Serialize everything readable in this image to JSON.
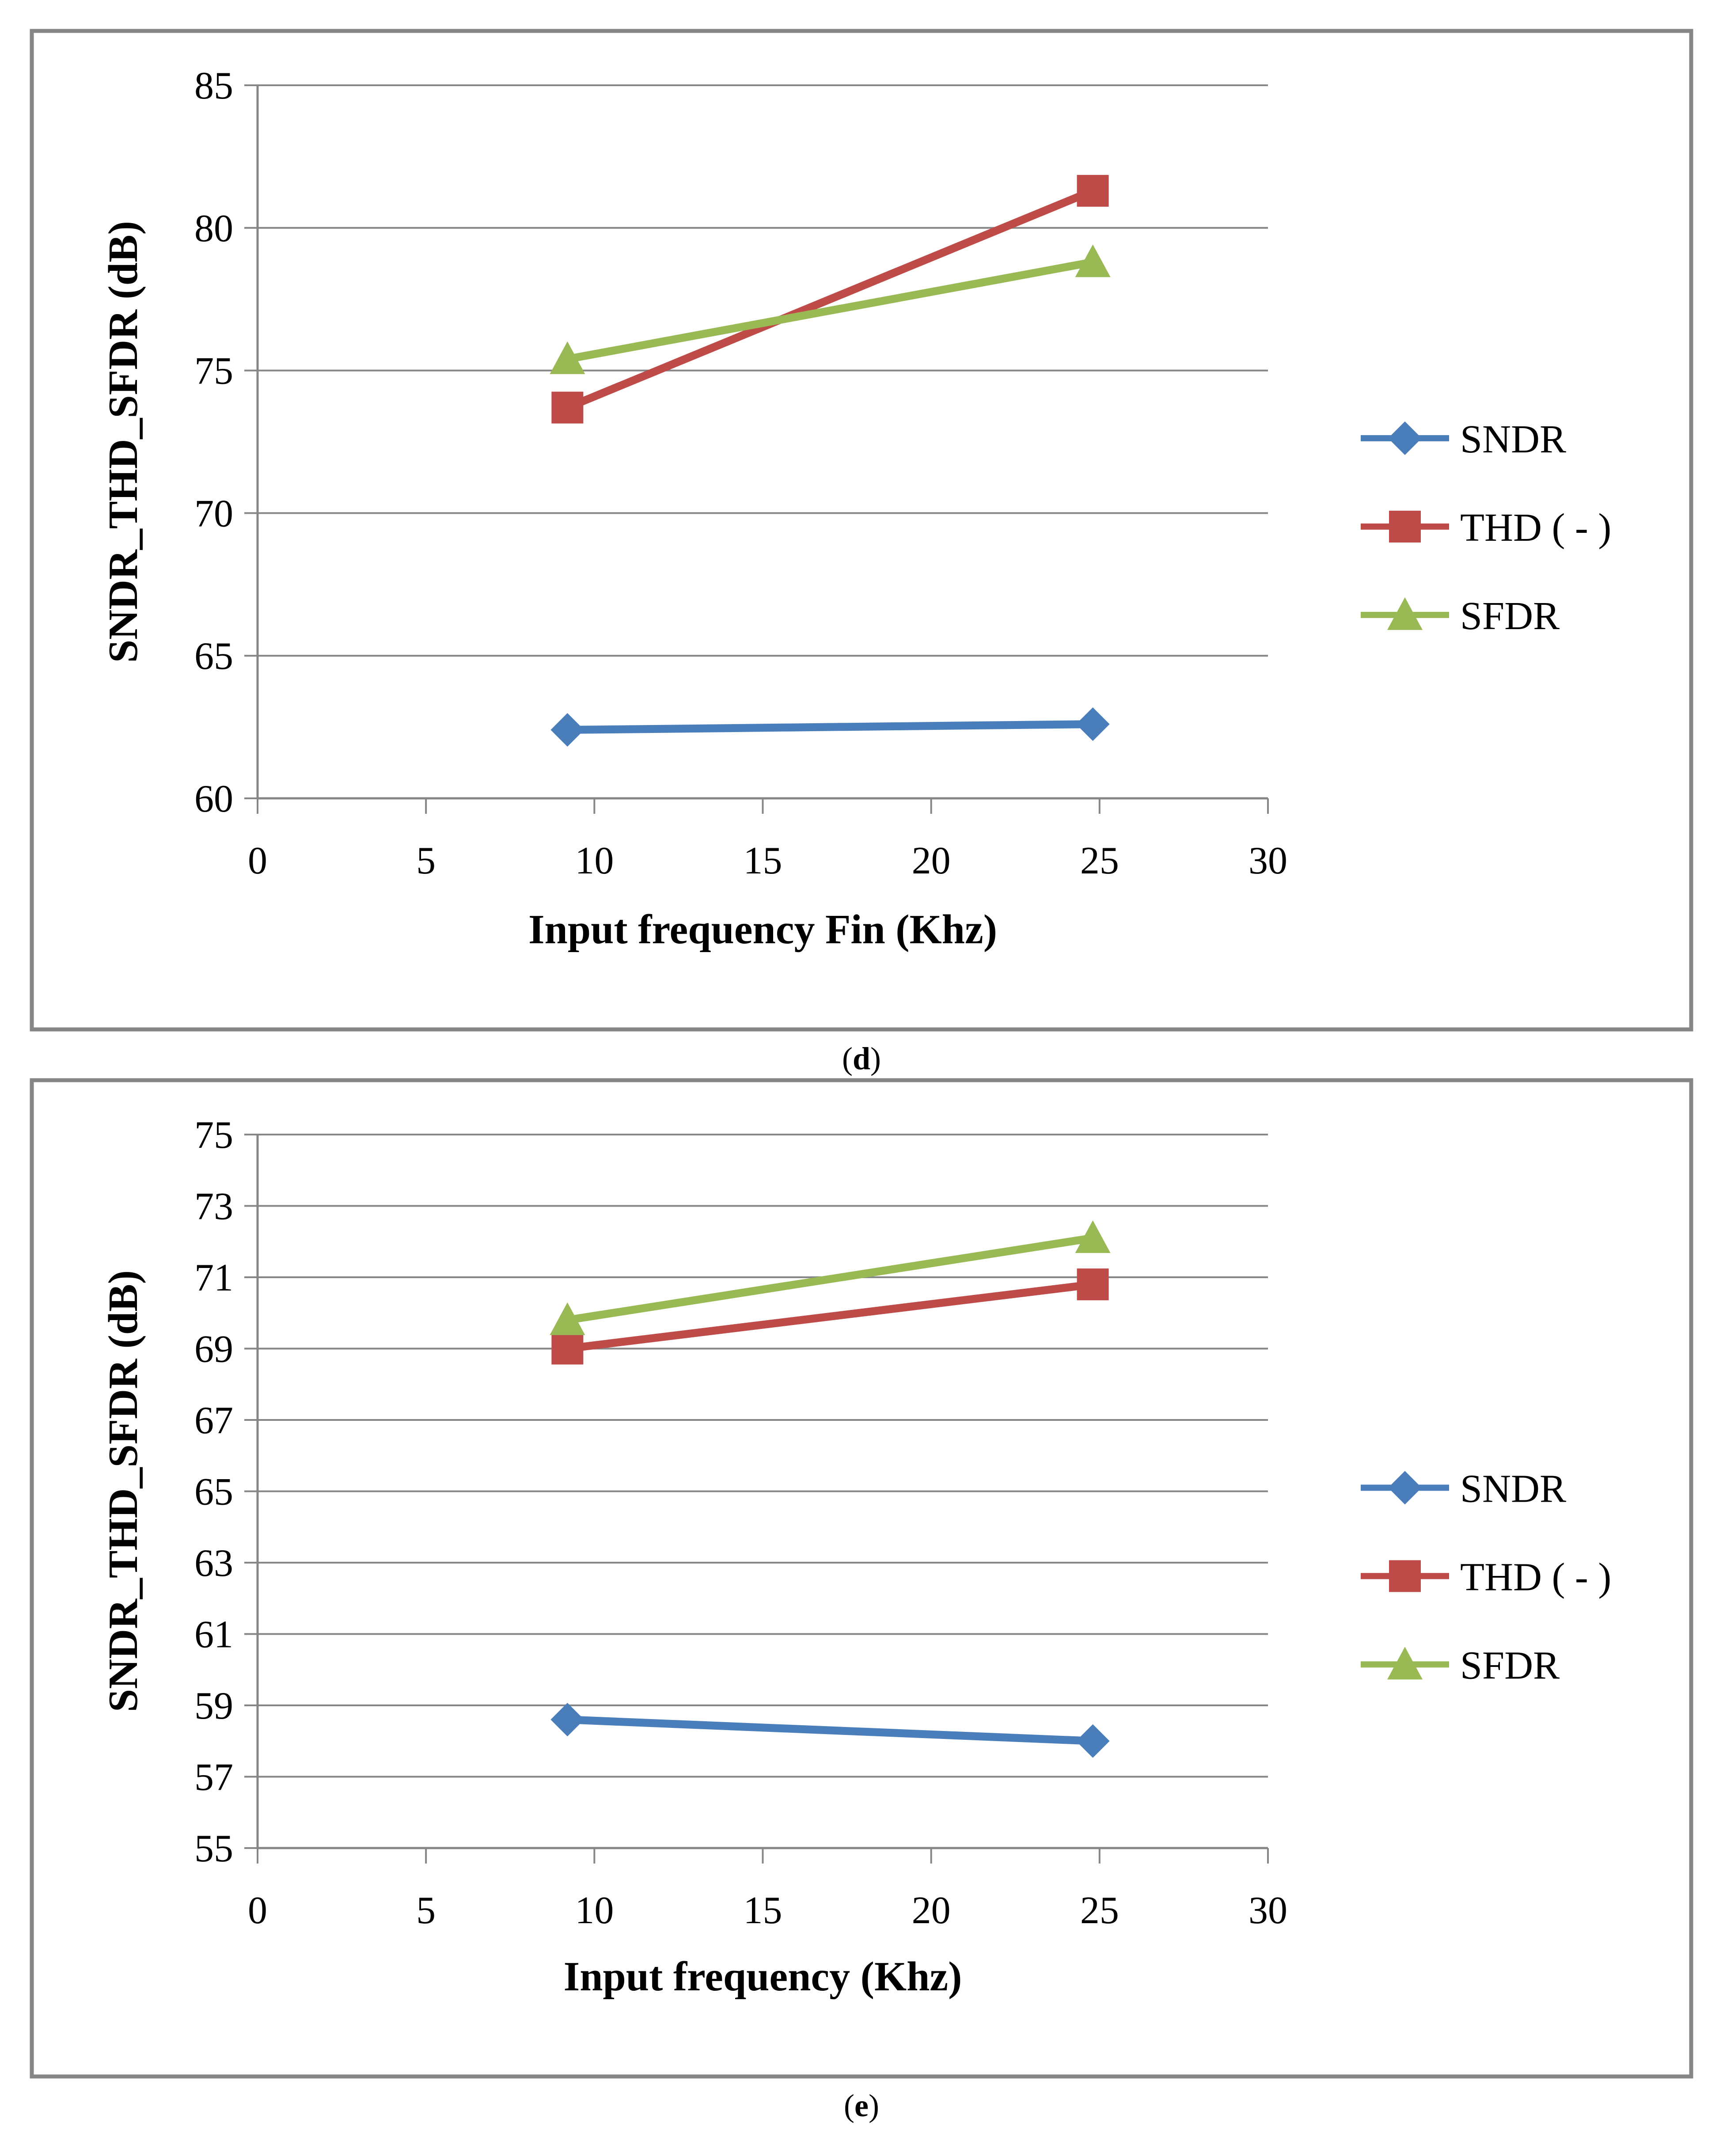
{
  "chart_data": [
    {
      "type": "line",
      "panel": "d",
      "xlabel": "Input  frequency Fin (Khz)",
      "ylabel": "SNDR_THD_SFDR (dB)",
      "xlim": [
        0,
        30
      ],
      "ylim": [
        60,
        85
      ],
      "xticks": [
        0,
        5,
        10,
        15,
        20,
        25,
        30
      ],
      "yticks": [
        60,
        65,
        70,
        75,
        80,
        85
      ],
      "grid": "horizontal",
      "legend": "right",
      "series": [
        {
          "name": "SNDR",
          "color": "#4a7ebb",
          "marker": "diamond",
          "x": [
            9.2,
            24.8
          ],
          "y": [
            62.4,
            62.6
          ]
        },
        {
          "name": "THD ( - )",
          "color": "#be4b48",
          "marker": "square",
          "x": [
            9.2,
            24.8
          ],
          "y": [
            73.7,
            81.3
          ]
        },
        {
          "name": "SFDR",
          "color": "#98b954",
          "marker": "triangle",
          "x": [
            9.2,
            24.8
          ],
          "y": [
            75.4,
            78.8
          ]
        }
      ]
    },
    {
      "type": "line",
      "panel": "e",
      "xlabel": "Input frequency (Khz)",
      "ylabel": "SNDR_THD_SFDR (dB)",
      "xlim": [
        0,
        30
      ],
      "ylim": [
        55,
        75
      ],
      "xticks": [
        0,
        5,
        10,
        15,
        20,
        25,
        30
      ],
      "yticks": [
        55,
        57,
        59,
        61,
        63,
        65,
        67,
        69,
        71,
        73,
        75
      ],
      "grid": "horizontal",
      "legend": "right",
      "series": [
        {
          "name": "SNDR",
          "color": "#4a7ebb",
          "marker": "diamond",
          "x": [
            9.2,
            24.8
          ],
          "y": [
            58.6,
            58.0
          ]
        },
        {
          "name": "THD ( - )",
          "color": "#be4b48",
          "marker": "square",
          "x": [
            9.2,
            24.8
          ],
          "y": [
            69.0,
            70.8
          ]
        },
        {
          "name": "SFDR",
          "color": "#98b954",
          "marker": "triangle",
          "x": [
            9.2,
            24.8
          ],
          "y": [
            69.8,
            72.1
          ]
        }
      ]
    }
  ],
  "captions": {
    "d": {
      "open": "(",
      "letter": "d",
      "close": ")"
    },
    "e": {
      "open": "(",
      "letter": "e",
      "close": ")"
    }
  }
}
